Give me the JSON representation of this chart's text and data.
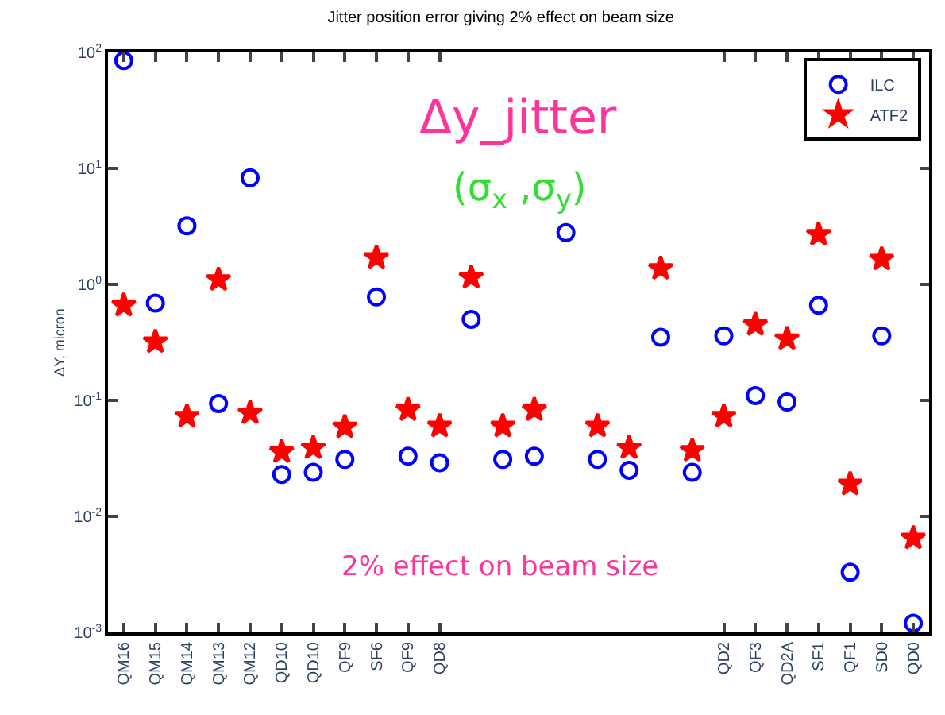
{
  "chart_data": {
    "type": "scatter",
    "title": "Jitter position error giving 2% effect on beam size",
    "ylabel": "ΔY, micron",
    "categories": [
      "QM16",
      "QM15",
      "QM14",
      "QM13",
      "QM12",
      "QD10",
      "QD10",
      "QF9",
      "SF6",
      "QF9",
      "QD8",
      null,
      null,
      null,
      null,
      null,
      null,
      null,
      null,
      "QD2",
      "QF3",
      "QD2A",
      "SF1",
      "QF1",
      "SD0",
      "QD0"
    ],
    "series": [
      {
        "name": "ILC",
        "color": "#0000ff",
        "marker": "circle",
        "values": [
          85,
          0.69,
          3.2,
          0.094,
          8.3,
          0.023,
          0.024,
          0.031,
          0.78,
          0.033,
          0.029,
          0.5,
          0.031,
          0.033,
          2.8,
          0.031,
          0.025,
          0.35,
          0.024,
          0.36,
          0.11,
          0.097,
          0.66,
          0.0033,
          0.36,
          0.0012
        ]
      },
      {
        "name": "ATF2",
        "color": "#ff0000",
        "marker": "star",
        "values": [
          0.66,
          0.32,
          0.073,
          1.1,
          0.078,
          0.036,
          0.039,
          0.059,
          1.7,
          0.083,
          0.06,
          1.15,
          0.06,
          0.083,
          null,
          0.06,
          0.039,
          1.37,
          0.037,
          0.073,
          0.45,
          0.34,
          2.7,
          0.019,
          1.65,
          0.0065
        ]
      }
    ],
    "log": "y",
    "ylim": [
      0.001,
      100
    ],
    "yticks": [
      {
        "value": 0.001,
        "label": "10$^{-3}$"
      },
      {
        "value": 0.01,
        "label": "10$^{-2}$"
      },
      {
        "value": 0.1,
        "label": "10$^{-1}$"
      },
      {
        "value": 1,
        "label": "10$^{0}$"
      },
      {
        "value": 10,
        "label": "10$^{1}$"
      },
      {
        "value": 100,
        "label": "10$^{2}$"
      }
    ],
    "legend": "top right",
    "annotations": [
      "Δy_jitter",
      "(σ$_{x}$ ,σ$_{y}$)",
      "2% effect on beam size"
    ]
  }
}
